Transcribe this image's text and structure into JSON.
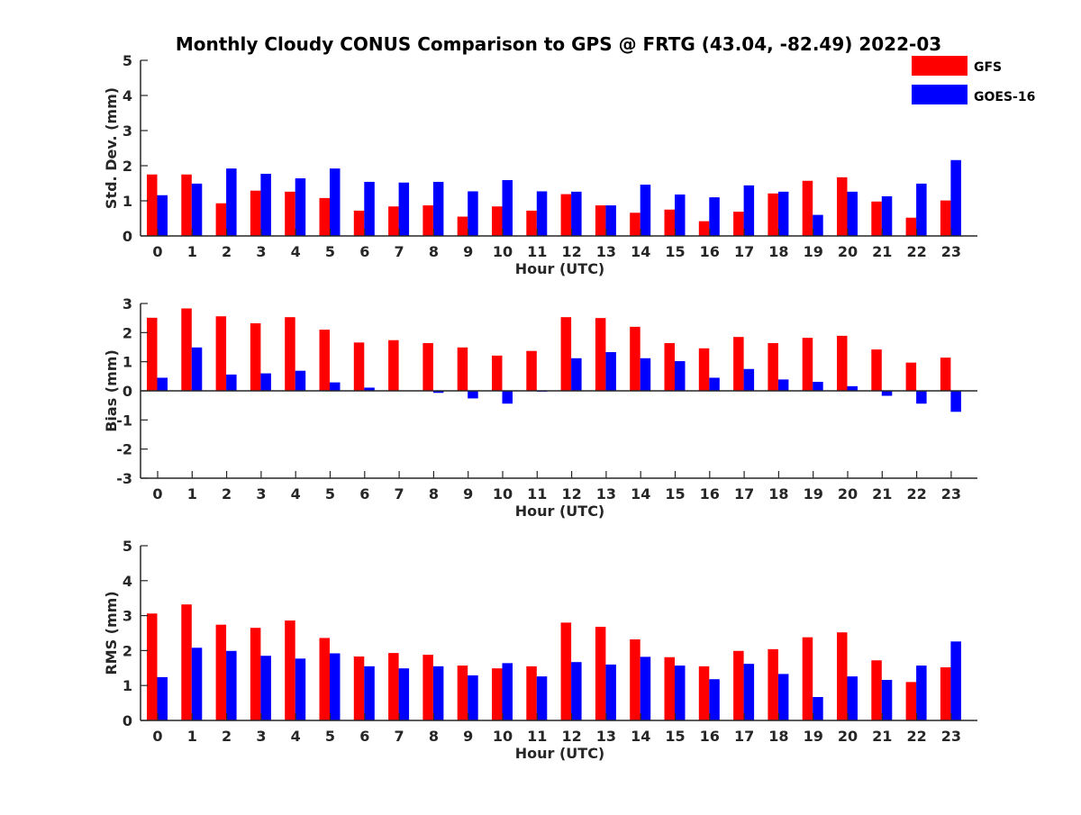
{
  "chart_data": {
    "title": "Monthly Cloudy CONUS Comparison to GPS @ FRTG (43.04, -82.49) 2022-03",
    "legend": {
      "placement": "top-right",
      "entries": [
        {
          "name": "GFS",
          "color": "#ff0000"
        },
        {
          "name": "GOES-16",
          "color": "#0000ff"
        }
      ]
    },
    "panels": [
      {
        "type": "bar",
        "xlabel": "Hour (UTC)",
        "ylabel": "Std. Dev. (mm)",
        "ylim": [
          0,
          5
        ],
        "yticks": [
          "0",
          "1",
          "2",
          "3",
          "4",
          "5"
        ],
        "categories": [
          "0",
          "1",
          "2",
          "3",
          "4",
          "5",
          "6",
          "7",
          "8",
          "9",
          "10",
          "11",
          "12",
          "13",
          "14",
          "15",
          "16",
          "17",
          "18",
          "19",
          "20",
          "21",
          "22",
          "23"
        ],
        "series": [
          {
            "name": "GFS",
            "values": [
              1.75,
              1.75,
              0.93,
              1.29,
              1.26,
              1.08,
              0.72,
              0.84,
              0.87,
              0.55,
              0.84,
              0.72,
              1.19,
              0.87,
              0.66,
              0.75,
              0.42,
              0.69,
              1.21,
              1.57,
              1.67,
              0.98,
              0.52,
              1.01
            ]
          },
          {
            "name": "GOES-16",
            "values": [
              1.16,
              1.49,
              1.92,
              1.77,
              1.64,
              1.92,
              1.54,
              1.52,
              1.54,
              1.27,
              1.59,
              1.27,
              1.26,
              0.87,
              1.46,
              1.18,
              1.1,
              1.44,
              1.26,
              0.6,
              1.26,
              1.13,
              1.49,
              2.16
            ]
          }
        ]
      },
      {
        "type": "bar",
        "xlabel": "Hour (UTC)",
        "ylabel": "Bias (mm)",
        "ylim": [
          -3,
          3
        ],
        "yticks": [
          "-3",
          "-2",
          "-1",
          "0",
          "1",
          "2",
          "3"
        ],
        "categories": [
          "0",
          "1",
          "2",
          "3",
          "4",
          "5",
          "6",
          "7",
          "8",
          "9",
          "10",
          "11",
          "12",
          "13",
          "14",
          "15",
          "16",
          "17",
          "18",
          "19",
          "20",
          "21",
          "22",
          "23"
        ],
        "series": [
          {
            "name": "GFS",
            "values": [
              2.51,
              2.83,
              2.56,
              2.32,
              2.53,
              2.1,
              1.66,
              1.74,
              1.64,
              1.49,
              1.21,
              1.37,
              2.53,
              2.5,
              2.2,
              1.64,
              1.46,
              1.85,
              1.64,
              1.82,
              1.89,
              1.42,
              0.97,
              1.14
            ]
          },
          {
            "name": "GOES-16",
            "values": [
              0.45,
              1.49,
              0.56,
              0.6,
              0.69,
              0.29,
              0.11,
              0.0,
              -0.07,
              -0.26,
              -0.44,
              -0.03,
              1.12,
              1.33,
              1.12,
              1.02,
              0.45,
              0.75,
              0.39,
              0.31,
              0.16,
              -0.17,
              -0.44,
              -0.72
            ]
          }
        ]
      },
      {
        "type": "bar",
        "xlabel": "Hour (UTC)",
        "ylabel": "RMS (mm)",
        "ylim": [
          0,
          5
        ],
        "yticks": [
          "0",
          "1",
          "2",
          "3",
          "4",
          "5"
        ],
        "categories": [
          "0",
          "1",
          "2",
          "3",
          "4",
          "5",
          "6",
          "7",
          "8",
          "9",
          "10",
          "11",
          "12",
          "13",
          "14",
          "15",
          "16",
          "17",
          "18",
          "19",
          "20",
          "21",
          "22",
          "23"
        ],
        "series": [
          {
            "name": "GFS",
            "values": [
              3.06,
              3.32,
              2.74,
              2.65,
              2.86,
              2.36,
              1.83,
              1.93,
              1.88,
              1.57,
              1.49,
              1.55,
              2.8,
              2.68,
              2.32,
              1.81,
              1.55,
              1.99,
              2.04,
              2.38,
              2.52,
              1.72,
              1.1,
              1.52
            ]
          },
          {
            "name": "GOES-16",
            "values": [
              1.24,
              2.08,
              1.99,
              1.85,
              1.77,
              1.92,
              1.55,
              1.49,
              1.55,
              1.29,
              1.64,
              1.26,
              1.67,
              1.6,
              1.82,
              1.57,
              1.18,
              1.62,
              1.33,
              0.67,
              1.26,
              1.16,
              1.57,
              2.26
            ]
          }
        ]
      }
    ]
  }
}
